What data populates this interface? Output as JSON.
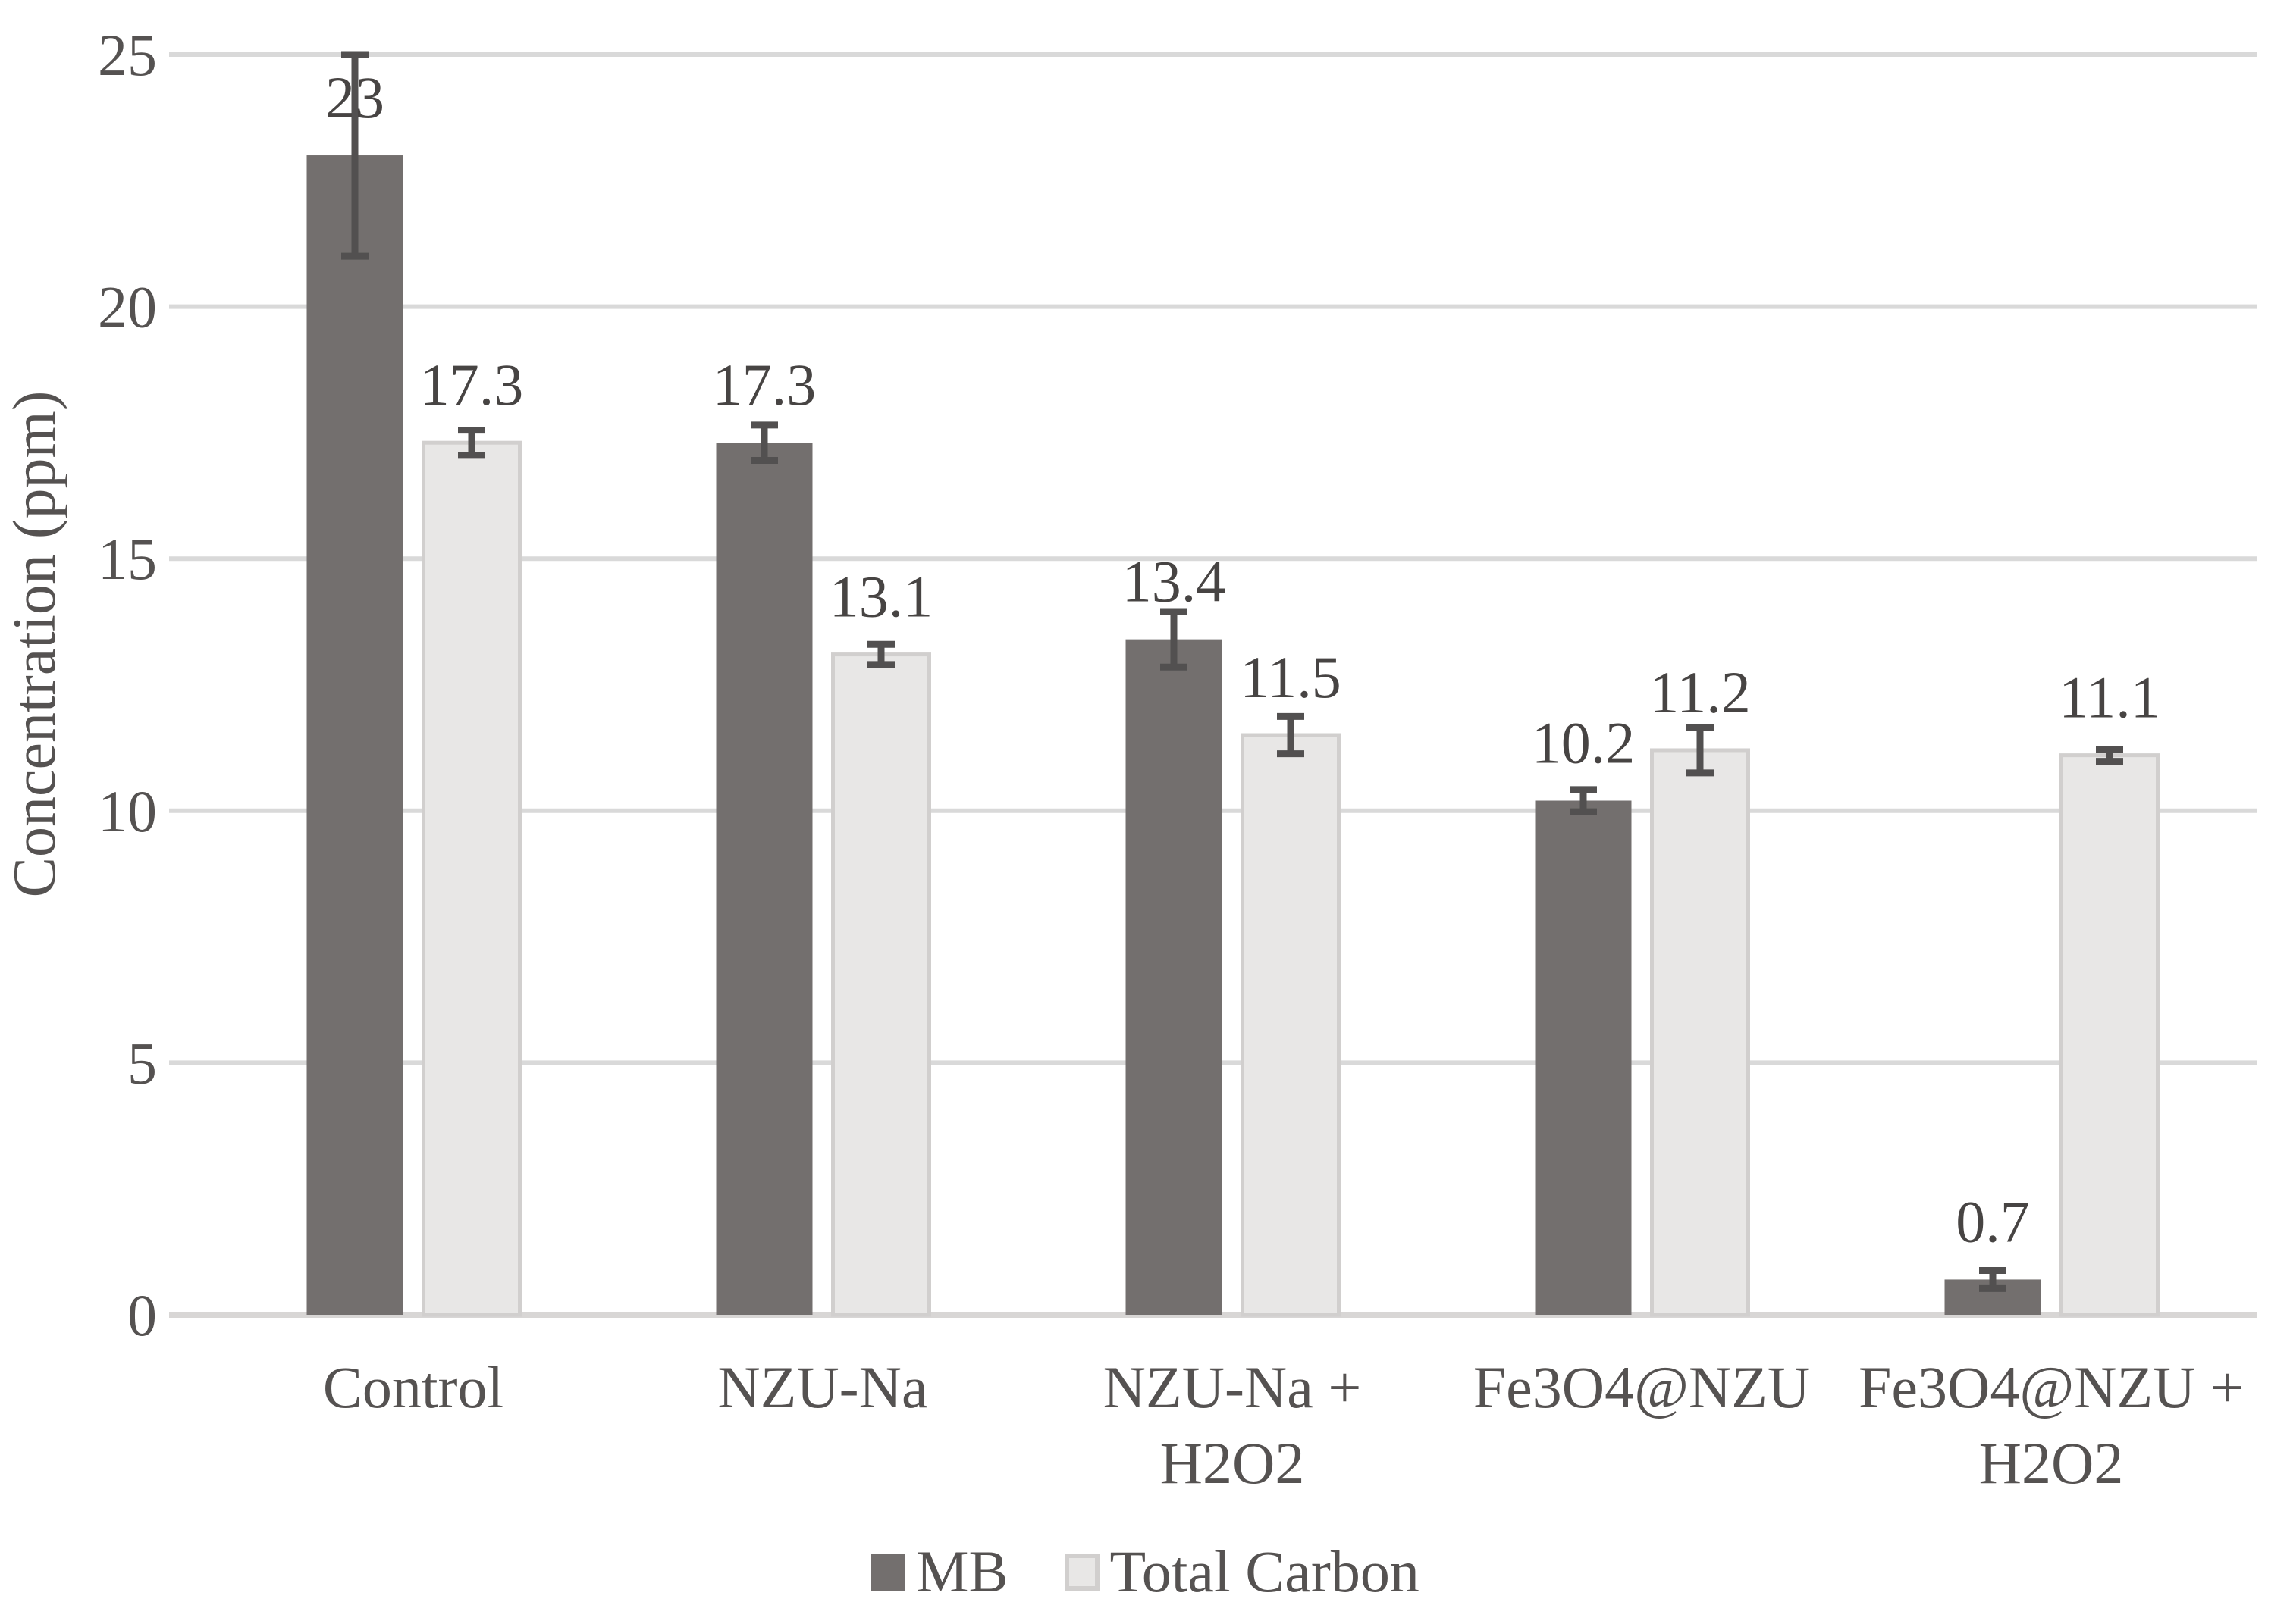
{
  "chart_data": {
    "type": "bar",
    "title": "",
    "ylabel": "Concentration (ppm)",
    "xlabel": "",
    "ylim": [
      0,
      25
    ],
    "ytick_labels": [
      "0",
      "5",
      "10",
      "15",
      "20",
      "25"
    ],
    "ytick_values": [
      0,
      5,
      10,
      15,
      20,
      25
    ],
    "grid": "horizontal",
    "legend_position": "bottom",
    "categories": [
      "Control",
      "NZU-Na",
      "NZU-Na + H2O2",
      "Fe3O4@NZU",
      "Fe3O4@NZU + H2O2"
    ],
    "category_lines": [
      [
        "Control"
      ],
      [
        "NZU-Na"
      ],
      [
        "NZU-Na +",
        "H2O2"
      ],
      [
        "Fe3O4@NZU"
      ],
      [
        "Fe3O4@NZU +",
        "H2O2"
      ]
    ],
    "series": [
      {
        "name": "MB",
        "color": "#736f6e",
        "border_color": "#736f6e",
        "values": [
          23,
          17.3,
          13.4,
          10.2,
          0.7
        ],
        "value_labels": [
          "23",
          "17.3",
          "13.4",
          "10.2",
          "0.7"
        ],
        "errors": [
          2.0,
          0.35,
          0.55,
          0.22,
          0.18
        ]
      },
      {
        "name": "Total Carbon",
        "color": "#e8e7e6",
        "border_color": "#d1cfce",
        "values": [
          17.3,
          13.1,
          11.5,
          11.2,
          11.1
        ],
        "value_labels": [
          "17.3",
          "13.1",
          "11.5",
          "11.2",
          "11.1"
        ],
        "errors": [
          0.25,
          0.2,
          0.37,
          0.45,
          0.12
        ]
      }
    ],
    "colors": {
      "gridline": "#d9d9d9",
      "baseline": "#d8d6d5",
      "error_bar": "#525050",
      "value_label_text": "#474443",
      "axis_text": "#555251"
    }
  }
}
